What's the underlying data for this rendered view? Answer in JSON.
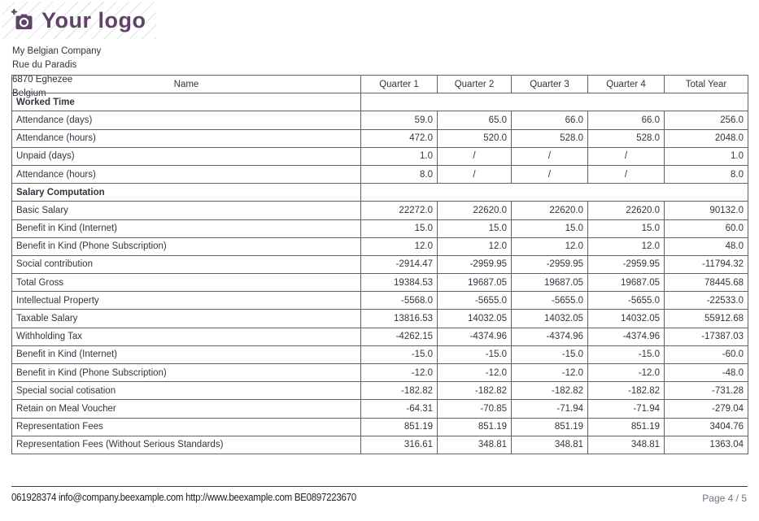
{
  "logo": {
    "text": "Your logo",
    "color": "#614368",
    "icon": "camera-plus-icon"
  },
  "company": {
    "name": "My Belgian Company",
    "street": "Rue du Paradis",
    "city": "6870 Eghezee",
    "country": "Belgium"
  },
  "table": {
    "columns": [
      "Name",
      "Quarter 1",
      "Quarter 2",
      "Quarter 3",
      "Quarter 4",
      "Total Year"
    ],
    "rows": [
      {
        "label": "Worked Time",
        "type": "section",
        "values": []
      },
      {
        "label": "Attendance (days)",
        "type": "data",
        "values": [
          "59.0",
          "65.0",
          "66.0",
          "66.0",
          "256.0"
        ]
      },
      {
        "label": "Attendance (hours)",
        "type": "data",
        "values": [
          "472.0",
          "520.0",
          "528.0",
          "528.0",
          "2048.0"
        ]
      },
      {
        "label": "Unpaid (days)",
        "type": "data",
        "values": [
          "1.0",
          "/",
          "/",
          "/",
          "1.0"
        ]
      },
      {
        "label": "Attendance (hours)",
        "type": "data",
        "values": [
          "8.0",
          "/",
          "/",
          "/",
          "8.0"
        ]
      },
      {
        "label": "Salary Computation",
        "type": "section",
        "values": []
      },
      {
        "label": "Basic Salary",
        "type": "data",
        "values": [
          "22272.0",
          "22620.0",
          "22620.0",
          "22620.0",
          "90132.0"
        ]
      },
      {
        "label": "Benefit in Kind (Internet)",
        "type": "data",
        "values": [
          "15.0",
          "15.0",
          "15.0",
          "15.0",
          "60.0"
        ]
      },
      {
        "label": "Benefit in Kind (Phone Subscription)",
        "type": "data",
        "values": [
          "12.0",
          "12.0",
          "12.0",
          "12.0",
          "48.0"
        ]
      },
      {
        "label": "Social contribution",
        "type": "data",
        "values": [
          "-2914.47",
          "-2959.95",
          "-2959.95",
          "-2959.95",
          "-11794.32"
        ]
      },
      {
        "label": "Total Gross",
        "type": "data",
        "values": [
          "19384.53",
          "19687.05",
          "19687.05",
          "19687.05",
          "78445.68"
        ]
      },
      {
        "label": "Intellectual Property",
        "type": "data",
        "values": [
          "-5568.0",
          "-5655.0",
          "-5655.0",
          "-5655.0",
          "-22533.0"
        ]
      },
      {
        "label": "Taxable Salary",
        "type": "data",
        "values": [
          "13816.53",
          "14032.05",
          "14032.05",
          "14032.05",
          "55912.68"
        ]
      },
      {
        "label": "Withholding Tax",
        "type": "data",
        "values": [
          "-4262.15",
          "-4374.96",
          "-4374.96",
          "-4374.96",
          "-17387.03"
        ]
      },
      {
        "label": "Benefit in Kind (Internet)",
        "type": "data",
        "values": [
          "-15.0",
          "-15.0",
          "-15.0",
          "-15.0",
          "-60.0"
        ]
      },
      {
        "label": "Benefit in Kind (Phone Subscription)",
        "type": "data",
        "values": [
          "-12.0",
          "-12.0",
          "-12.0",
          "-12.0",
          "-48.0"
        ]
      },
      {
        "label": "Special social cotisation",
        "type": "data",
        "values": [
          "-182.82",
          "-182.82",
          "-182.82",
          "-182.82",
          "-731.28"
        ]
      },
      {
        "label": "Retain on Meal Voucher",
        "type": "data",
        "values": [
          "-64.31",
          "-70.85",
          "-71.94",
          "-71.94",
          "-279.04"
        ]
      },
      {
        "label": "Representation Fees",
        "type": "data",
        "values": [
          "851.19",
          "851.19",
          "851.19",
          "851.19",
          "3404.76"
        ]
      },
      {
        "label": "Representation Fees (Without Serious Standards)",
        "type": "data",
        "values": [
          "316.61",
          "348.81",
          "348.81",
          "348.81",
          "1363.04"
        ]
      }
    ]
  },
  "footer": {
    "contact": "061928374 info@company.beexample.com http://www.beexample.com BE0897223670",
    "page": "Page 4 / 5"
  },
  "colors": {
    "logo_purple": "#614368",
    "text_dark": "#31353f",
    "table_border": "#616161",
    "page_number_gray": "#6e7585"
  }
}
